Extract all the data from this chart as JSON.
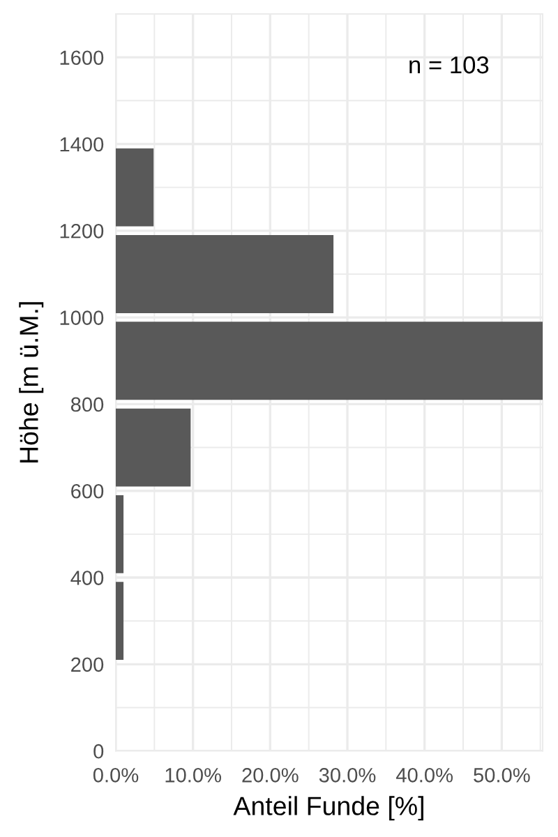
{
  "chart_data": {
    "type": "histogram",
    "orientation": "horizontal",
    "bins": [
      200,
      400,
      600,
      800,
      1000,
      1200,
      1400
    ],
    "values": [
      1.0,
      1.0,
      9.7,
      55.3,
      28.2,
      4.9
    ],
    "color": "#595959",
    "xlabel": "Anteil Funde [%]",
    "ylabel": "Höhe [m ü.M.]",
    "xlim": [
      0,
      55.3
    ],
    "xticks": [
      {
        "value": 0,
        "label": "0.0%"
      },
      {
        "value": 10,
        "label": "10.0%"
      },
      {
        "value": 20,
        "label": "20.0%"
      },
      {
        "value": 30,
        "label": "30.0%"
      },
      {
        "value": 40,
        "label": "40.0%"
      },
      {
        "value": 50,
        "label": "50.0%"
      }
    ],
    "ylim": [
      0,
      1700
    ],
    "yticks": [
      0,
      200,
      400,
      600,
      800,
      1000,
      1200,
      1400,
      1600
    ],
    "grid": true,
    "annotations": [
      "n = 103"
    ]
  }
}
